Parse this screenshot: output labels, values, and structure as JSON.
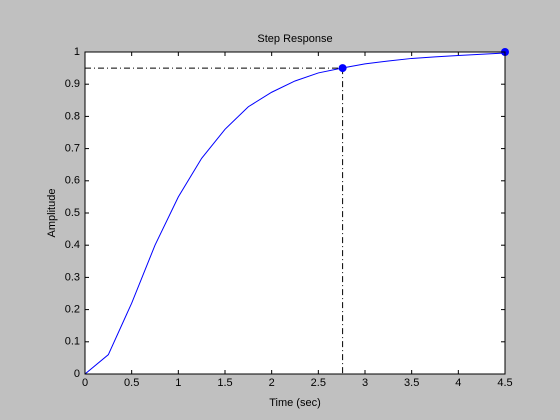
{
  "chart_data": {
    "type": "line",
    "title": "Step Response",
    "x_label": "Time (sec)",
    "y_label": "Amplitude",
    "x": [
      0,
      0.25,
      0.5,
      0.75,
      1,
      1.25,
      1.5,
      1.75,
      2,
      2.25,
      2.5,
      2.75,
      3,
      3.25,
      3.5,
      3.75,
      4,
      4.25,
      4.5
    ],
    "series": [
      {
        "color": "#0000ff",
        "values": [
          0,
          0.06,
          0.22,
          0.4,
          0.55,
          0.67,
          0.76,
          0.83,
          0.875,
          0.91,
          0.935,
          0.95,
          0.963,
          0.972,
          0.98,
          0.985,
          0.989,
          0.993,
          0.997
        ]
      }
    ],
    "markers": {
      "color": "#0000ff",
      "x": [
        2.76,
        4.5
      ],
      "values": [
        0.95,
        1
      ]
    },
    "xlim": [
      0,
      4.5
    ],
    "xticks": [
      0,
      0.5,
      1,
      1.5,
      2,
      2.5,
      3,
      3.5,
      4,
      4.5
    ],
    "ylim": [
      0,
      1
    ],
    "yticks": [
      0,
      0.1,
      0.2,
      0.3,
      0.4,
      0.5,
      0.6,
      0.7,
      0.8,
      0.9,
      1
    ]
  }
}
